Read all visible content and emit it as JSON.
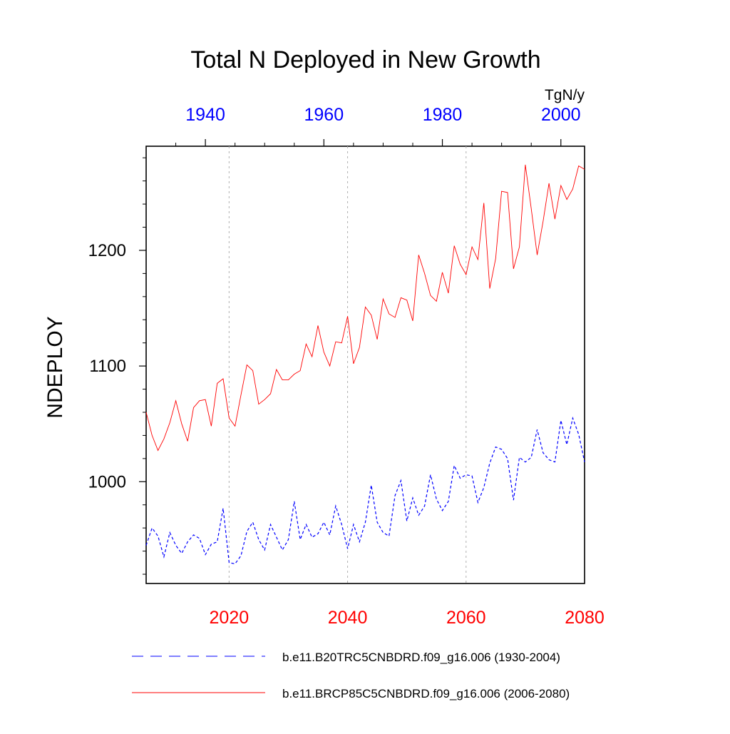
{
  "chart_data": {
    "type": "line",
    "title": "Total N Deployed in New Growth",
    "units": "TgN/y",
    "ylabel": "NDEPLOY",
    "ylim": [
      912,
      1290
    ],
    "y_major_ticks": [
      1000,
      1100,
      1200
    ],
    "y_minor_ticks": [
      920,
      940,
      960,
      980,
      1020,
      1040,
      1060,
      1080,
      1120,
      1140,
      1160,
      1180,
      1220,
      1240,
      1260,
      1280
    ],
    "top_axis": {
      "color": "#0000ff",
      "range": [
        1930,
        2004
      ],
      "major_ticks": [
        1940,
        1960,
        1980,
        2000
      ],
      "minor_ticks": [
        1935,
        1945,
        1950,
        1955,
        1965,
        1970,
        1975,
        1985,
        1990,
        1995
      ]
    },
    "bottom_axis": {
      "color": "#ff0000",
      "range": [
        2006,
        2080
      ],
      "major_ticks": [
        2020,
        2040,
        2060,
        2080
      ],
      "vgrid": [
        2020,
        2040,
        2060
      ]
    },
    "series": [
      {
        "name": "b.e11.B20TRC5CNBDRD.f09_g16.006 (1930-2004)",
        "color": "#0000ff",
        "dash": "dashed",
        "x": [
          1930,
          1931,
          1932,
          1933,
          1934,
          1935,
          1936,
          1937,
          1938,
          1939,
          1940,
          1941,
          1942,
          1943,
          1944,
          1945,
          1946,
          1947,
          1948,
          1949,
          1950,
          1951,
          1952,
          1953,
          1954,
          1955,
          1956,
          1957,
          1958,
          1959,
          1960,
          1961,
          1962,
          1963,
          1964,
          1965,
          1966,
          1967,
          1968,
          1969,
          1970,
          1971,
          1972,
          1973,
          1974,
          1975,
          1976,
          1977,
          1978,
          1979,
          1980,
          1981,
          1982,
          1983,
          1984,
          1985,
          1986,
          1987,
          1988,
          1989,
          1990,
          1991,
          1992,
          1993,
          1994,
          1995,
          1996,
          1997,
          1998,
          1999,
          2000,
          2001,
          2002,
          2003,
          2004
        ],
        "values": [
          945,
          960,
          953,
          935,
          956,
          945,
          938,
          948,
          954,
          951,
          937,
          946,
          948,
          977,
          930,
          929,
          936,
          957,
          965,
          950,
          941,
          963,
          952,
          941,
          950,
          983,
          950,
          963,
          952,
          955,
          965,
          954,
          979,
          963,
          942,
          963,
          948,
          965,
          997,
          965,
          956,
          953,
          988,
          1001,
          966,
          986,
          971,
          979,
          1006,
          985,
          975,
          983,
          1014,
          1003,
          1006,
          1005,
          982,
          995,
          1016,
          1030,
          1028,
          1020,
          984,
          1021,
          1017,
          1021,
          1045,
          1025,
          1019,
          1017,
          1053,
          1032,
          1055,
          1041,
          1017
        ]
      },
      {
        "name": "b.e11.BRCP85C5CNBDRD.f09_g16.006 (2006-2080)",
        "color": "#ff0000",
        "dash": "solid",
        "x": [
          2006,
          2007,
          2008,
          2009,
          2010,
          2011,
          2012,
          2013,
          2014,
          2015,
          2016,
          2017,
          2018,
          2019,
          2020,
          2021,
          2022,
          2023,
          2024,
          2025,
          2026,
          2027,
          2028,
          2029,
          2030,
          2031,
          2032,
          2033,
          2034,
          2035,
          2036,
          2037,
          2038,
          2039,
          2040,
          2041,
          2042,
          2043,
          2044,
          2045,
          2046,
          2047,
          2048,
          2049,
          2050,
          2051,
          2052,
          2053,
          2054,
          2055,
          2056,
          2057,
          2058,
          2059,
          2060,
          2061,
          2062,
          2063,
          2064,
          2065,
          2066,
          2067,
          2068,
          2069,
          2070,
          2071,
          2072,
          2073,
          2074,
          2075,
          2076,
          2077,
          2078,
          2079,
          2080
        ],
        "values": [
          1060,
          1040,
          1027,
          1037,
          1051,
          1070,
          1050,
          1035,
          1064,
          1070,
          1071,
          1048,
          1085,
          1089,
          1055,
          1048,
          1075,
          1101,
          1096,
          1067,
          1071,
          1076,
          1097,
          1088,
          1088,
          1093,
          1096,
          1119,
          1108,
          1135,
          1112,
          1100,
          1121,
          1120,
          1143,
          1102,
          1116,
          1151,
          1144,
          1123,
          1158,
          1145,
          1142,
          1159,
          1157,
          1139,
          1196,
          1180,
          1161,
          1156,
          1181,
          1163,
          1204,
          1188,
          1179,
          1203,
          1192,
          1241,
          1167,
          1193,
          1251,
          1250,
          1184,
          1203,
          1274,
          1236,
          1196,
          1225,
          1258,
          1227,
          1256,
          1244,
          1253,
          1273,
          1270
        ]
      }
    ],
    "legend": {
      "position": "bottom",
      "entries": [
        "b.e11.B20TRC5CNBDRD.f09_g16.006 (1930-2004)",
        "b.e11.BRCP85C5CNBDRD.f09_g16.006 (2006-2080)"
      ]
    }
  }
}
